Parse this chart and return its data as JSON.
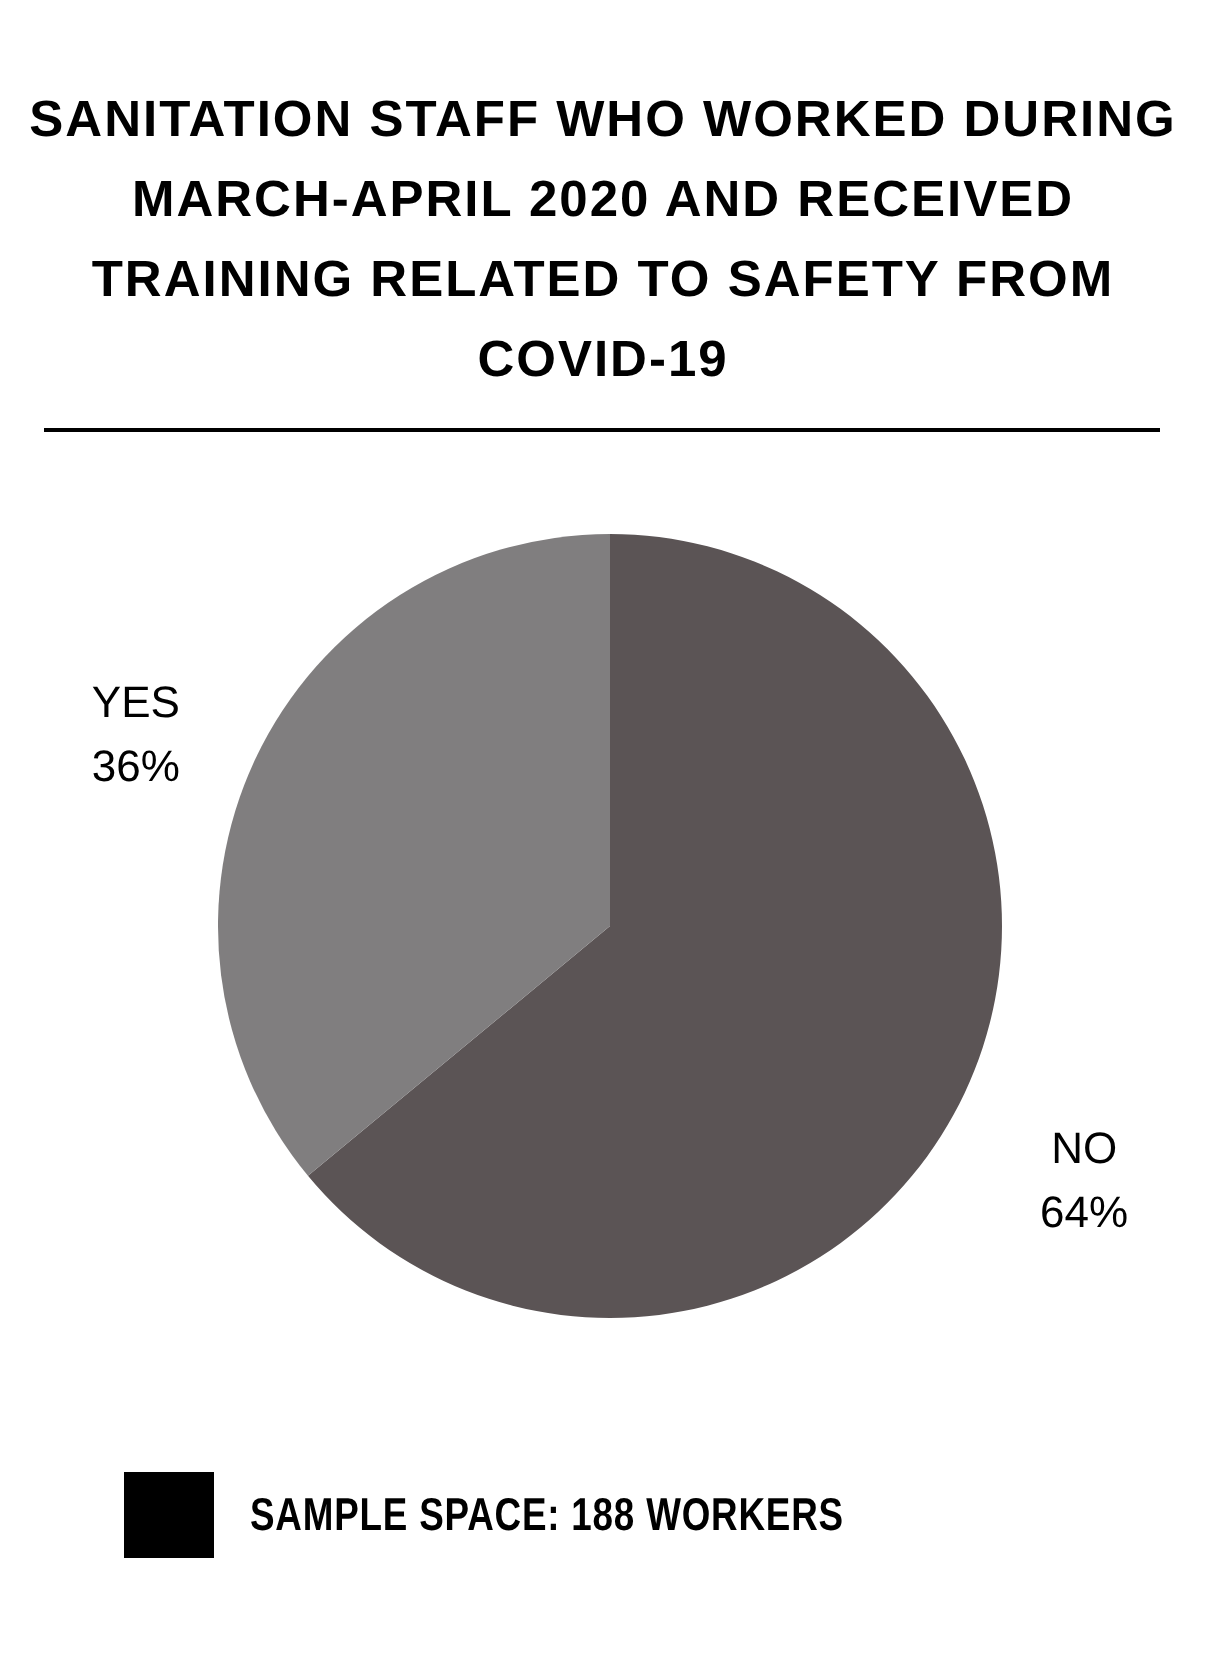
{
  "chart_data": {
    "type": "pie",
    "title": "SANITATION STAFF WHO WORKED DURING MARCH-APRIL 2020 AND RECEIVED TRAINING RELATED TO SAFETY FROM COVID-19",
    "categories": [
      "NO",
      "YES"
    ],
    "values": [
      64,
      36
    ],
    "value_labels": [
      "64%",
      "36%"
    ],
    "colors": [
      "#5b5455",
      "#807e7f"
    ],
    "annotations": [
      "SAMPLE SPACE: 188 WORKERS"
    ]
  }
}
